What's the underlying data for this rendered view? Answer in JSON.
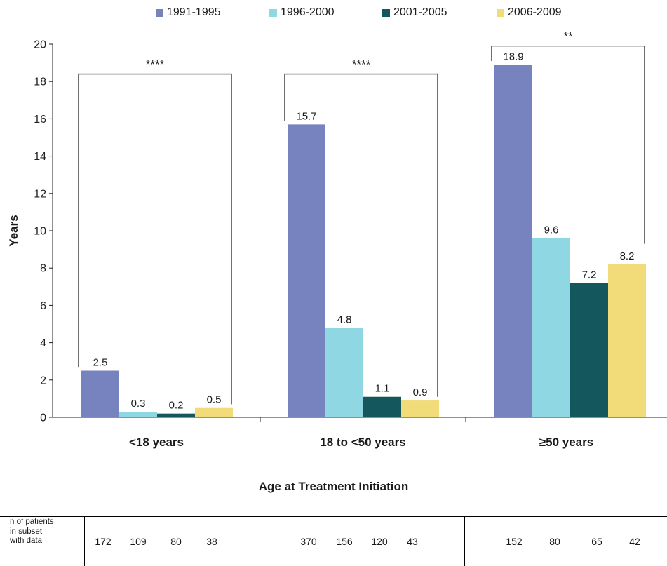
{
  "chart_data": {
    "type": "bar",
    "ylabel": "Years",
    "xlabel": "Age at Treatment Initiation",
    "ylim": [
      0,
      20
    ],
    "yticks": [
      "0",
      "2",
      "4",
      "6",
      "8",
      "10",
      "12",
      "14",
      "16",
      "18",
      "20"
    ],
    "legend_position": "top",
    "categories": [
      "<18 years",
      "18 to <50 years",
      "≥50 years"
    ],
    "series": [
      {
        "name": "1991-1995",
        "color": "#7783bf",
        "values": [
          2.5,
          15.7,
          18.9
        ],
        "labels": [
          "2.5",
          "15.7",
          "18.9"
        ]
      },
      {
        "name": "1996-2000",
        "color": "#8fd8e3",
        "values": [
          0.3,
          4.8,
          9.6
        ],
        "labels": [
          "0.3",
          "4.8",
          "9.6"
        ]
      },
      {
        "name": "2001-2005",
        "color": "#14575c",
        "values": [
          0.2,
          1.1,
          7.2
        ],
        "labels": [
          "0.2",
          "1.1",
          "7.2"
        ]
      },
      {
        "name": "2006-2009",
        "color": "#f2dc7a",
        "values": [
          0.5,
          0.9,
          8.2
        ],
        "labels": [
          "0.5",
          "0.9",
          "8.2"
        ]
      }
    ],
    "significance": [
      {
        "group": 0,
        "label": "****",
        "bracket_top": 18.4,
        "left_end": 2.7,
        "right_end": 0.7
      },
      {
        "group": 1,
        "label": "****",
        "bracket_top": 18.4,
        "left_end": 15.9,
        "right_end": 1.1
      },
      {
        "group": 2,
        "label": "**",
        "bracket_top": 19.9,
        "left_end": 19.1,
        "right_end": 9.3
      }
    ]
  },
  "patients_table": {
    "row_label": [
      "n of patients",
      "in subset",
      "with data"
    ],
    "groups": [
      [
        "172",
        "109",
        "80",
        "38"
      ],
      [
        "370",
        "156",
        "120",
        "43"
      ],
      [
        "152",
        "80",
        "65",
        "42"
      ]
    ]
  }
}
